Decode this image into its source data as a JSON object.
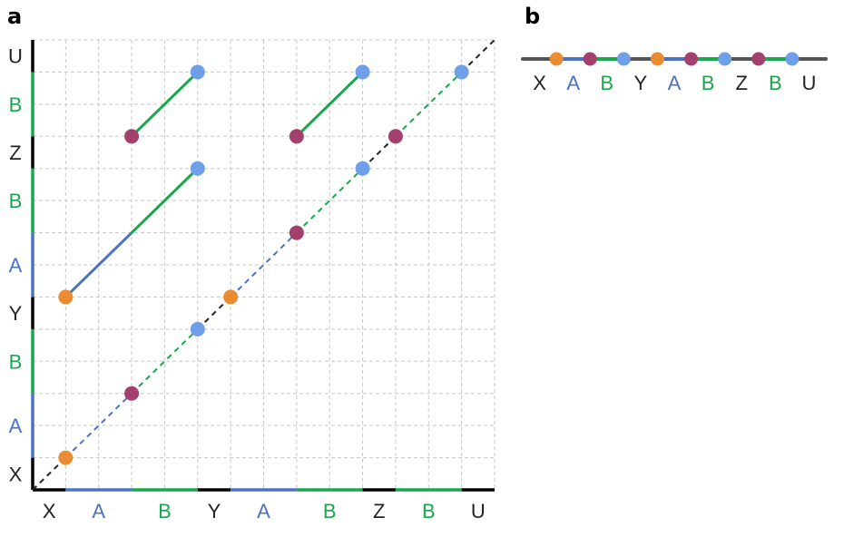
{
  "colors": {
    "A": "#4b72c4",
    "B": "#17a84b",
    "other": "#222222",
    "axis": "#000000",
    "grid": "#c8c8c8",
    "strand": "#555555",
    "dot_orange": "#ea8c32",
    "dot_purple": "#a3406e",
    "dot_blue": "#6e9fe8"
  },
  "panel_a": {
    "label": "a",
    "grid_size": 14,
    "x_segments": [
      {
        "label": "X",
        "type": "other",
        "start": 0,
        "end": 1
      },
      {
        "label": "A",
        "type": "A",
        "start": 1,
        "end": 3
      },
      {
        "label": "B",
        "type": "B",
        "start": 3,
        "end": 5
      },
      {
        "label": "Y",
        "type": "other",
        "start": 5,
        "end": 6
      },
      {
        "label": "A",
        "type": "A",
        "start": 6,
        "end": 8
      },
      {
        "label": "B",
        "type": "B",
        "start": 8,
        "end": 10
      },
      {
        "label": "Z",
        "type": "other",
        "start": 10,
        "end": 11
      },
      {
        "label": "B",
        "type": "B",
        "start": 11,
        "end": 13
      },
      {
        "label": "U",
        "type": "other",
        "start": 13,
        "end": 14
      }
    ],
    "y_segments": [
      {
        "label": "X",
        "type": "other",
        "start": 0,
        "end": 1
      },
      {
        "label": "A",
        "type": "A",
        "start": 1,
        "end": 3
      },
      {
        "label": "B",
        "type": "B",
        "start": 3,
        "end": 5
      },
      {
        "label": "Y",
        "type": "other",
        "start": 5,
        "end": 6
      },
      {
        "label": "A",
        "type": "A",
        "start": 6,
        "end": 8
      },
      {
        "label": "B",
        "type": "B",
        "start": 8,
        "end": 10
      },
      {
        "label": "Z",
        "type": "other",
        "start": 10,
        "end": 11
      },
      {
        "label": "B",
        "type": "B",
        "start": 11,
        "end": 13
      },
      {
        "label": "U",
        "type": "other",
        "start": 13,
        "end": 14
      }
    ],
    "diagonal": [
      {
        "x1": 0,
        "y1": 0,
        "x2": 1,
        "y2": 1,
        "type": "other"
      },
      {
        "x1": 1,
        "y1": 1,
        "x2": 3,
        "y2": 3,
        "type": "A"
      },
      {
        "x1": 3,
        "y1": 3,
        "x2": 5,
        "y2": 5,
        "type": "B"
      },
      {
        "x1": 5,
        "y1": 5,
        "x2": 6,
        "y2": 6,
        "type": "other"
      },
      {
        "x1": 6,
        "y1": 6,
        "x2": 8,
        "y2": 8,
        "type": "A"
      },
      {
        "x1": 8,
        "y1": 8,
        "x2": 10,
        "y2": 10,
        "type": "B"
      },
      {
        "x1": 10,
        "y1": 10,
        "x2": 11,
        "y2": 11,
        "type": "other"
      },
      {
        "x1": 11,
        "y1": 11,
        "x2": 13,
        "y2": 13,
        "type": "B"
      },
      {
        "x1": 13,
        "y1": 13,
        "x2": 14,
        "y2": 14,
        "type": "other"
      }
    ],
    "segments": [
      {
        "x1": 1,
        "y1": 6,
        "x2": 3,
        "y2": 8,
        "type": "A"
      },
      {
        "x1": 3,
        "y1": 8,
        "x2": 5,
        "y2": 10,
        "type": "B"
      },
      {
        "x1": 3,
        "y1": 11,
        "x2": 5,
        "y2": 13,
        "type": "B"
      },
      {
        "x1": 8,
        "y1": 11,
        "x2": 10,
        "y2": 13,
        "type": "B"
      }
    ],
    "dots": [
      {
        "x": 1,
        "y": 1,
        "color": "orange"
      },
      {
        "x": 3,
        "y": 3,
        "color": "purple"
      },
      {
        "x": 5,
        "y": 5,
        "color": "blue"
      },
      {
        "x": 6,
        "y": 6,
        "color": "orange"
      },
      {
        "x": 8,
        "y": 8,
        "color": "purple"
      },
      {
        "x": 10,
        "y": 10,
        "color": "blue"
      },
      {
        "x": 11,
        "y": 11,
        "color": "purple"
      },
      {
        "x": 13,
        "y": 13,
        "color": "blue"
      },
      {
        "x": 1,
        "y": 6,
        "color": "orange"
      },
      {
        "x": 5,
        "y": 10,
        "color": "blue"
      },
      {
        "x": 3,
        "y": 11,
        "color": "purple"
      },
      {
        "x": 5,
        "y": 13,
        "color": "blue"
      },
      {
        "x": 8,
        "y": 11,
        "color": "purple"
      },
      {
        "x": 10,
        "y": 13,
        "color": "blue"
      }
    ]
  },
  "panel_b": {
    "label": "b",
    "labels": [
      {
        "text": "X",
        "type": "other"
      },
      {
        "text": "A",
        "type": "A"
      },
      {
        "text": "B",
        "type": "B"
      },
      {
        "text": "Y",
        "type": "other"
      },
      {
        "text": "A",
        "type": "A"
      },
      {
        "text": "B",
        "type": "B"
      },
      {
        "text": "Z",
        "type": "other"
      },
      {
        "text": "B",
        "type": "B"
      },
      {
        "text": "U",
        "type": "other"
      }
    ],
    "strand_pieces": [
      "other",
      "A",
      "B",
      "other",
      "A",
      "B",
      "other",
      "B",
      "other"
    ],
    "dots": [
      "orange",
      "purple",
      "blue",
      "orange",
      "purple",
      "blue",
      "purple",
      "blue"
    ]
  }
}
